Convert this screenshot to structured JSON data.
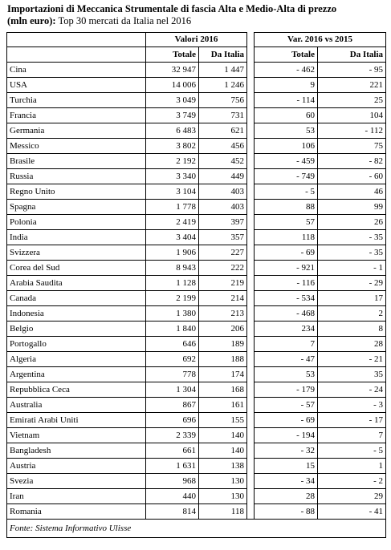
{
  "header": {
    "title": "Importazioni di Meccanica Strumentale di fascia Alta e Medio-Alta di prezzo",
    "unit": "(mln euro):",
    "subtitle": "Top 30 mercati da Italia nel 2016"
  },
  "table": {
    "groups": [
      "Valori 2016",
      "Var. 2016 vs 2015"
    ],
    "columns": [
      "Totale",
      "Da Italia",
      "Totale",
      "Da Italia"
    ],
    "rows": [
      [
        "Cina",
        "32 947",
        "1 447",
        "- 462",
        "- 95"
      ],
      [
        "USA",
        "14 006",
        "1 246",
        "9",
        "221"
      ],
      [
        "Turchia",
        "3 049",
        "756",
        "- 114",
        "25"
      ],
      [
        "Francia",
        "3 749",
        "731",
        "60",
        "104"
      ],
      [
        "Germania",
        "6 483",
        "621",
        "53",
        "- 112"
      ],
      [
        "Messico",
        "3 802",
        "456",
        "106",
        "75"
      ],
      [
        "Brasile",
        "2 192",
        "452",
        "- 459",
        "- 82"
      ],
      [
        "Russia",
        "3 340",
        "449",
        "- 749",
        "- 60"
      ],
      [
        "Regno Unito",
        "3 104",
        "403",
        "- 5",
        "46"
      ],
      [
        "Spagna",
        "1 778",
        "403",
        "88",
        "99"
      ],
      [
        "Polonia",
        "2 419",
        "397",
        "57",
        "26"
      ],
      [
        "India",
        "3 404",
        "357",
        "118",
        "- 35"
      ],
      [
        "Svizzera",
        "1 906",
        "227",
        "- 69",
        "- 35"
      ],
      [
        "Corea del Sud",
        "8 943",
        "222",
        "- 921",
        "- 1"
      ],
      [
        "Arabia Saudita",
        "1 128",
        "219",
        "- 116",
        "- 29"
      ],
      [
        "Canada",
        "2 199",
        "214",
        "- 534",
        "17"
      ],
      [
        "Indonesia",
        "1 380",
        "213",
        "- 468",
        "2"
      ],
      [
        "Belgio",
        "1 840",
        "206",
        "234",
        "8"
      ],
      [
        "Portogallo",
        "646",
        "189",
        "7",
        "28"
      ],
      [
        "Algeria",
        "692",
        "188",
        "- 47",
        "- 21"
      ],
      [
        "Argentina",
        "778",
        "174",
        "53",
        "35"
      ],
      [
        "Repubblica Ceca",
        "1 304",
        "168",
        "- 179",
        "- 24"
      ],
      [
        "Australia",
        "867",
        "161",
        "- 57",
        "- 3"
      ],
      [
        "Emirati Arabi Uniti",
        "696",
        "155",
        "- 69",
        "- 17"
      ],
      [
        "Vietnam",
        "2 339",
        "140",
        "- 194",
        "7"
      ],
      [
        "Bangladesh",
        "661",
        "140",
        "- 32",
        "- 5"
      ],
      [
        "Austria",
        "1 631",
        "138",
        "15",
        "1"
      ],
      [
        "Svezia",
        "968",
        "130",
        "- 34",
        "- 2"
      ],
      [
        "Iran",
        "440",
        "130",
        "28",
        "29"
      ],
      [
        "Romania",
        "814",
        "118",
        "- 88",
        "- 41"
      ]
    ]
  },
  "footer": {
    "source": "Fonte: Sistema Informativo Ulisse"
  }
}
